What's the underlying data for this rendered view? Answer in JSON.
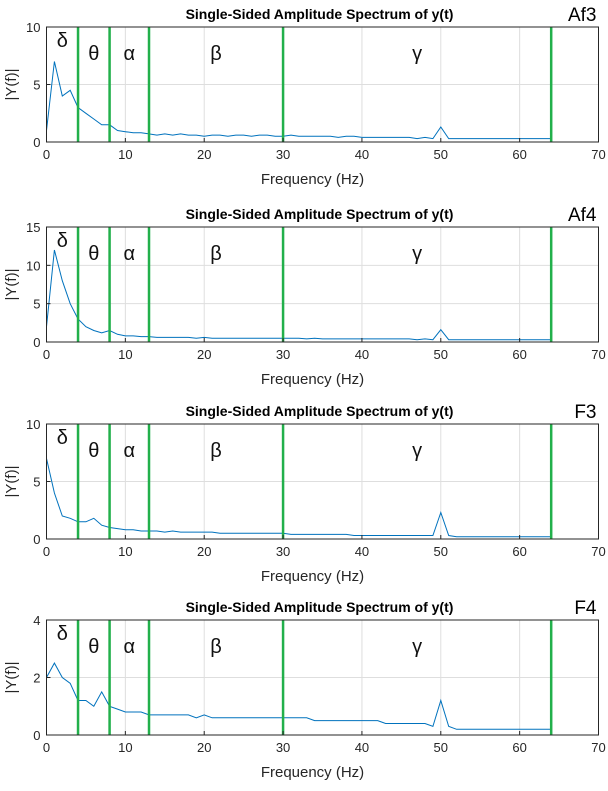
{
  "chart_data": [
    {
      "type": "line",
      "title": "Single-Sided Amplitude Spectrum of y(t)",
      "channel_label": "Af3",
      "xlabel": "Frequency (Hz)",
      "ylabel": "|Y(f)|",
      "xlim": [
        0,
        70
      ],
      "ylim": [
        0,
        10
      ],
      "xticks": [
        0,
        10,
        20,
        30,
        40,
        50,
        60,
        70
      ],
      "yticks": [
        0,
        5,
        10
      ],
      "grid": true,
      "x_step_hz": 1,
      "values": [
        1,
        7,
        4,
        4.5,
        3,
        2.5,
        2,
        1.5,
        1.5,
        1,
        0.9,
        0.8,
        0.8,
        0.7,
        0.6,
        0.7,
        0.6,
        0.7,
        0.6,
        0.6,
        0.5,
        0.6,
        0.6,
        0.5,
        0.6,
        0.6,
        0.5,
        0.6,
        0.6,
        0.5,
        0.5,
        0.6,
        0.5,
        0.5,
        0.5,
        0.5,
        0.5,
        0.4,
        0.5,
        0.5,
        0.4,
        0.4,
        0.4,
        0.4,
        0.4,
        0.4,
        0.4,
        0.3,
        0.4,
        0.3,
        1.3,
        0.3,
        0.3,
        0.3,
        0.3,
        0.3,
        0.3,
        0.3,
        0.3,
        0.3,
        0.3,
        0.3,
        0.3,
        0.3,
        0.3
      ]
    },
    {
      "type": "line",
      "title": "Single-Sided Amplitude Spectrum of y(t)",
      "channel_label": "Af4",
      "xlabel": "Frequency (Hz)",
      "ylabel": "|Y(f)|",
      "xlim": [
        0,
        70
      ],
      "ylim": [
        0,
        15
      ],
      "xticks": [
        0,
        10,
        20,
        30,
        40,
        50,
        60,
        70
      ],
      "yticks": [
        0,
        5,
        10,
        15
      ],
      "grid": true,
      "x_step_hz": 1,
      "values": [
        2,
        12,
        8,
        5,
        3,
        2,
        1.5,
        1.2,
        1.5,
        1,
        0.8,
        0.8,
        0.7,
        0.7,
        0.6,
        0.6,
        0.6,
        0.6,
        0.6,
        0.5,
        0.6,
        0.5,
        0.5,
        0.5,
        0.5,
        0.5,
        0.5,
        0.5,
        0.5,
        0.5,
        0.5,
        0.5,
        0.5,
        0.4,
        0.5,
        0.4,
        0.4,
        0.4,
        0.4,
        0.4,
        0.4,
        0.4,
        0.4,
        0.4,
        0.4,
        0.4,
        0.4,
        0.3,
        0.4,
        0.3,
        1.6,
        0.3,
        0.3,
        0.3,
        0.3,
        0.3,
        0.3,
        0.3,
        0.3,
        0.3,
        0.3,
        0.3,
        0.3,
        0.3,
        0.3
      ]
    },
    {
      "type": "line",
      "title": "Single-Sided Amplitude Spectrum of y(t)",
      "channel_label": "F3",
      "xlabel": "Frequency (Hz)",
      "ylabel": "|Y(f)|",
      "xlim": [
        0,
        70
      ],
      "ylim": [
        0,
        10
      ],
      "xticks": [
        0,
        10,
        20,
        30,
        40,
        50,
        60,
        70
      ],
      "yticks": [
        0,
        5,
        10
      ],
      "grid": true,
      "x_step_hz": 1,
      "values": [
        7,
        4,
        2,
        1.8,
        1.5,
        1.5,
        1.8,
        1.2,
        1,
        0.9,
        0.8,
        0.8,
        0.7,
        0.7,
        0.7,
        0.6,
        0.7,
        0.6,
        0.6,
        0.6,
        0.6,
        0.6,
        0.5,
        0.5,
        0.5,
        0.5,
        0.5,
        0.5,
        0.5,
        0.5,
        0.5,
        0.4,
        0.4,
        0.4,
        0.4,
        0.4,
        0.4,
        0.4,
        0.4,
        0.3,
        0.3,
        0.3,
        0.3,
        0.3,
        0.3,
        0.3,
        0.3,
        0.3,
        0.3,
        0.3,
        2.3,
        0.3,
        0.2,
        0.2,
        0.2,
        0.2,
        0.2,
        0.2,
        0.2,
        0.2,
        0.2,
        0.2,
        0.2,
        0.2,
        0.2
      ]
    },
    {
      "type": "line",
      "title": "Single-Sided Amplitude Spectrum of y(t)",
      "channel_label": "F4",
      "xlabel": "Frequency (Hz)",
      "ylabel": "|Y(f)|",
      "xlim": [
        0,
        70
      ],
      "ylim": [
        0,
        4
      ],
      "xticks": [
        0,
        10,
        20,
        30,
        40,
        50,
        60,
        70
      ],
      "yticks": [
        0,
        2,
        4
      ],
      "grid": true,
      "x_step_hz": 1,
      "values": [
        2,
        2.5,
        2,
        1.8,
        1.2,
        1.2,
        1,
        1.5,
        1,
        0.9,
        0.8,
        0.8,
        0.8,
        0.7,
        0.7,
        0.7,
        0.7,
        0.7,
        0.7,
        0.6,
        0.7,
        0.6,
        0.6,
        0.6,
        0.6,
        0.6,
        0.6,
        0.6,
        0.6,
        0.6,
        0.6,
        0.6,
        0.6,
        0.6,
        0.5,
        0.5,
        0.5,
        0.5,
        0.5,
        0.5,
        0.5,
        0.5,
        0.5,
        0.4,
        0.4,
        0.4,
        0.4,
        0.4,
        0.4,
        0.3,
        1.2,
        0.3,
        0.2,
        0.2,
        0.2,
        0.2,
        0.2,
        0.2,
        0.2,
        0.2,
        0.2,
        0.2,
        0.2,
        0.2,
        0.2
      ]
    }
  ],
  "band_boundaries_hz": [
    4,
    8,
    13,
    30,
    64
  ],
  "bands": [
    {
      "label": "δ",
      "x": 2
    },
    {
      "label": "θ",
      "x": 6
    },
    {
      "label": "α",
      "x": 10.5
    },
    {
      "label": "β",
      "x": 21.5
    },
    {
      "label": "γ",
      "x": 47
    }
  ],
  "colors": {
    "series": "#0072BD",
    "band_lines": "#22B04B",
    "grid": "#dedede",
    "axes": "#262626"
  }
}
